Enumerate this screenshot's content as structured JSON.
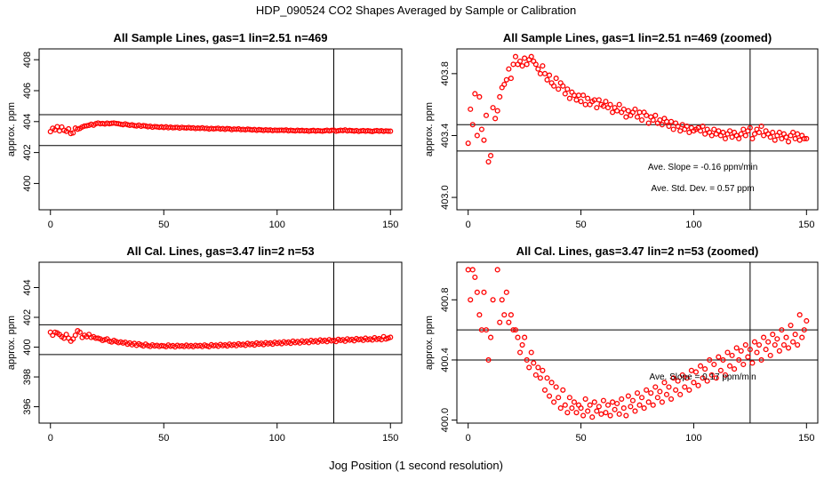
{
  "figure": {
    "title": "HDP_090524  CO2 Shapes Averaged by Sample or Calibration",
    "xlabel": "Jog Position (1 second resolution)"
  },
  "colors": {
    "points": "#ff0000",
    "lines": "#000000"
  },
  "chart_data": [
    {
      "type": "scatter",
      "title": "All Sample Lines, gas=1 lin=2.51 n=469",
      "xlabel": "",
      "ylabel": "approx. ppm",
      "xlim": [
        -5,
        155
      ],
      "ylim": [
        398.3,
        408.7
      ],
      "xticks": [
        0,
        50,
        100,
        150
      ],
      "yticks": [
        400,
        402,
        404,
        406,
        408
      ],
      "hlines": [
        404.45,
        402.45
      ],
      "vline": 125,
      "shape_key": "sample",
      "annotations": []
    },
    {
      "type": "scatter",
      "title": "All Sample Lines, gas=1 lin=2.51 n=469 (zoomed)",
      "xlabel": "",
      "ylabel": "approx. ppm",
      "xlim": [
        -5,
        155
      ],
      "ylim": [
        402.92,
        403.96
      ],
      "xticks": [
        0,
        50,
        100,
        150
      ],
      "yticks": [
        403.0,
        403.4,
        403.8
      ],
      "hlines": [
        403.47,
        403.3
      ],
      "vline": 125,
      "shape_key": "sample",
      "annotations": [
        {
          "text": "Ave. Slope =  -0.16  ppm/min",
          "x": 104,
          "y": 403.18
        },
        {
          "text": "Ave. Std. Dev. =  0.57  ppm",
          "x": 104,
          "y": 403.04
        }
      ]
    },
    {
      "type": "scatter",
      "title": "All Cal. Lines, gas=3.47 lin=2 n=53",
      "xlabel": "",
      "ylabel": "approx. ppm",
      "xlim": [
        -5,
        155
      ],
      "ylim": [
        394.9,
        405.7
      ],
      "xticks": [
        0,
        50,
        100,
        150
      ],
      "yticks": [
        396,
        398,
        400,
        402,
        404
      ],
      "hlines": [
        401.5,
        399.5
      ],
      "vline": 125,
      "shape_key": "cal",
      "annotations": []
    },
    {
      "type": "scatter",
      "title": "All Cal. Lines, gas=3.47 lin=2 n=53 (zoomed)",
      "xlabel": "",
      "ylabel": "approx. ppm",
      "xlim": [
        -5,
        155
      ],
      "ylim": [
        399.98,
        401.05
      ],
      "xticks": [
        0,
        50,
        100,
        150
      ],
      "yticks": [
        400.0,
        400.4,
        400.8
      ],
      "hlines": [
        400.6,
        400.4
      ],
      "vline": 125,
      "shape_key": "cal",
      "annotations": [
        {
          "text": "Ave. Slope =  0.17  ppm/min",
          "x": 104,
          "y": 400.27
        }
      ]
    }
  ],
  "series": {
    "sample": {
      "x": [
        0,
        1,
        2,
        3,
        4,
        5,
        6,
        7,
        8,
        9,
        10,
        11,
        12,
        13,
        14,
        15,
        16,
        17,
        18,
        19,
        20,
        21,
        22,
        23,
        24,
        25,
        26,
        27,
        28,
        29,
        30,
        31,
        32,
        33,
        34,
        35,
        36,
        37,
        38,
        39,
        40,
        41,
        42,
        43,
        44,
        45,
        46,
        47,
        48,
        49,
        50,
        51,
        52,
        53,
        54,
        55,
        56,
        57,
        58,
        59,
        60,
        61,
        62,
        63,
        64,
        65,
        66,
        67,
        68,
        69,
        70,
        71,
        72,
        73,
        74,
        75,
        76,
        77,
        78,
        79,
        80,
        81,
        82,
        83,
        84,
        85,
        86,
        87,
        88,
        89,
        90,
        91,
        92,
        93,
        94,
        95,
        96,
        97,
        98,
        99,
        100,
        101,
        102,
        103,
        104,
        105,
        106,
        107,
        108,
        109,
        110,
        111,
        112,
        113,
        114,
        115,
        116,
        117,
        118,
        119,
        120,
        121,
        122,
        123,
        124,
        125,
        126,
        127,
        128,
        129,
        130,
        131,
        132,
        133,
        134,
        135,
        136,
        137,
        138,
        139,
        140,
        141,
        142,
        143,
        144,
        145,
        146,
        147,
        148,
        149,
        150
      ],
      "y": [
        403.35,
        403.57,
        403.47,
        403.67,
        403.4,
        403.65,
        403.44,
        403.37,
        403.53,
        403.23,
        403.27,
        403.58,
        403.51,
        403.56,
        403.65,
        403.71,
        403.73,
        403.76,
        403.83,
        403.77,
        403.86,
        403.91,
        403.86,
        403.88,
        403.85,
        403.9,
        403.86,
        403.89,
        403.91,
        403.88,
        403.86,
        403.83,
        403.8,
        403.85,
        403.8,
        403.76,
        403.79,
        403.74,
        403.72,
        403.77,
        403.7,
        403.74,
        403.72,
        403.67,
        403.7,
        403.64,
        403.68,
        403.66,
        403.63,
        403.66,
        403.62,
        403.66,
        403.6,
        403.64,
        403.6,
        403.62,
        403.63,
        403.58,
        403.63,
        403.6,
        403.59,
        403.62,
        403.58,
        403.6,
        403.55,
        403.58,
        403.56,
        403.6,
        403.55,
        403.57,
        403.52,
        403.56,
        403.53,
        403.55,
        403.57,
        403.52,
        403.55,
        403.5,
        403.55,
        403.53,
        403.48,
        403.52,
        403.5,
        403.53,
        403.48,
        403.5,
        403.47,
        403.51,
        403.49,
        403.46,
        403.49,
        403.44,
        403.48,
        403.46,
        403.43,
        403.47,
        403.44,
        403.46,
        403.42,
        403.45,
        403.43,
        403.44,
        403.45,
        403.43,
        403.46,
        403.41,
        403.44,
        403.42,
        403.4,
        403.44,
        403.41,
        403.43,
        403.4,
        403.42,
        403.38,
        403.41,
        403.43,
        403.39,
        403.42,
        403.4,
        403.38,
        403.41,
        403.44,
        403.4,
        403.43,
        403.45,
        403.38,
        403.41,
        403.44,
        403.42,
        403.46,
        403.4,
        403.43,
        403.41,
        403.39,
        403.42,
        403.37,
        403.4,
        403.42,
        403.38,
        403.41,
        403.39,
        403.36,
        403.4,
        403.42,
        403.38,
        403.41,
        403.37,
        403.4,
        403.38,
        403.38
      ]
    },
    "cal": {
      "x": [
        0,
        1,
        2,
        3,
        4,
        5,
        6,
        7,
        8,
        9,
        10,
        11,
        12,
        13,
        14,
        15,
        16,
        17,
        18,
        19,
        20,
        21,
        22,
        23,
        24,
        25,
        26,
        27,
        28,
        29,
        30,
        31,
        32,
        33,
        34,
        35,
        36,
        37,
        38,
        39,
        40,
        41,
        42,
        43,
        44,
        45,
        46,
        47,
        48,
        49,
        50,
        51,
        52,
        53,
        54,
        55,
        56,
        57,
        58,
        59,
        60,
        61,
        62,
        63,
        64,
        65,
        66,
        67,
        68,
        69,
        70,
        71,
        72,
        73,
        74,
        75,
        76,
        77,
        78,
        79,
        80,
        81,
        82,
        83,
        84,
        85,
        86,
        87,
        88,
        89,
        90,
        91,
        92,
        93,
        94,
        95,
        96,
        97,
        98,
        99,
        100,
        101,
        102,
        103,
        104,
        105,
        106,
        107,
        108,
        109,
        110,
        111,
        112,
        113,
        114,
        115,
        116,
        117,
        118,
        119,
        120,
        121,
        122,
        123,
        124,
        125,
        126,
        127,
        128,
        129,
        130,
        131,
        132,
        133,
        134,
        135,
        136,
        137,
        138,
        139,
        140,
        141,
        142,
        143,
        144,
        145,
        146,
        147,
        148,
        149,
        150
      ],
      "y": [
        401.0,
        400.8,
        401.0,
        400.95,
        400.85,
        400.7,
        400.6,
        400.85,
        400.6,
        400.4,
        400.55,
        400.8,
        401.1,
        401.0,
        400.65,
        400.8,
        400.7,
        400.85,
        400.65,
        400.7,
        400.6,
        400.6,
        400.55,
        400.45,
        400.5,
        400.55,
        400.4,
        400.35,
        400.45,
        400.38,
        400.3,
        400.35,
        400.28,
        400.33,
        400.2,
        400.28,
        400.16,
        400.25,
        400.12,
        400.22,
        400.15,
        400.08,
        400.2,
        400.1,
        400.05,
        400.15,
        400.08,
        400.12,
        400.05,
        400.1,
        400.08,
        400.03,
        400.14,
        400.06,
        400.1,
        400.02,
        400.12,
        400.06,
        400.09,
        400.04,
        400.13,
        400.05,
        400.1,
        400.03,
        400.12,
        400.07,
        400.11,
        400.04,
        400.14,
        400.08,
        400.03,
        400.16,
        400.09,
        400.13,
        400.06,
        400.18,
        400.1,
        400.15,
        400.08,
        400.2,
        400.12,
        400.18,
        400.1,
        400.22,
        400.15,
        400.19,
        400.12,
        400.25,
        400.17,
        400.22,
        400.14,
        400.28,
        400.2,
        400.26,
        400.17,
        400.3,
        400.22,
        400.28,
        400.2,
        400.33,
        400.25,
        400.32,
        400.23,
        400.36,
        400.28,
        400.34,
        400.26,
        400.4,
        400.3,
        400.37,
        400.28,
        400.42,
        400.33,
        400.4,
        400.3,
        400.45,
        400.36,
        400.43,
        400.34,
        400.48,
        400.4,
        400.46,
        400.37,
        400.5,
        400.42,
        400.47,
        400.38,
        400.52,
        400.45,
        400.5,
        400.4,
        400.55,
        400.47,
        400.52,
        400.43,
        400.57,
        400.5,
        400.54,
        400.46,
        400.6,
        400.5,
        400.55,
        400.48,
        400.63,
        400.52,
        400.57,
        400.5,
        400.7,
        400.55,
        400.6,
        400.66
      ]
    }
  }
}
